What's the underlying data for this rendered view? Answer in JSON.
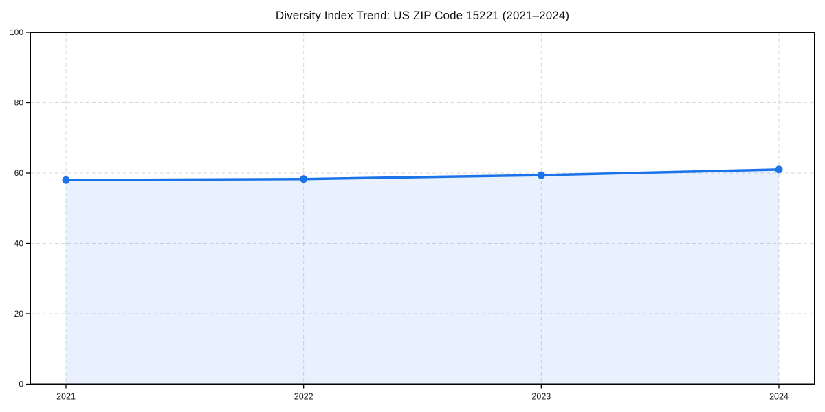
{
  "chart_data": {
    "type": "area",
    "title": "Diversity Index Trend: US ZIP Code 15221 (2021–2024)",
    "categories": [
      "2021",
      "2022",
      "2023",
      "2024"
    ],
    "series": [
      {
        "name": "Diversity Index",
        "values": [
          58.0,
          58.3,
          59.4,
          61.0
        ]
      }
    ],
    "xlabel": "",
    "ylabel": "",
    "ylim": [
      0,
      100
    ],
    "yticks": [
      0,
      20,
      40,
      60,
      80,
      100
    ],
    "grid": true,
    "legend": false,
    "marker": "circle",
    "line_color": "#1a73e8",
    "fill_color": "rgba(26,115,232,0.10)",
    "grid_color": "#d9d9d9",
    "axis_color": "#000000",
    "text_color": "#1a1a1a"
  }
}
